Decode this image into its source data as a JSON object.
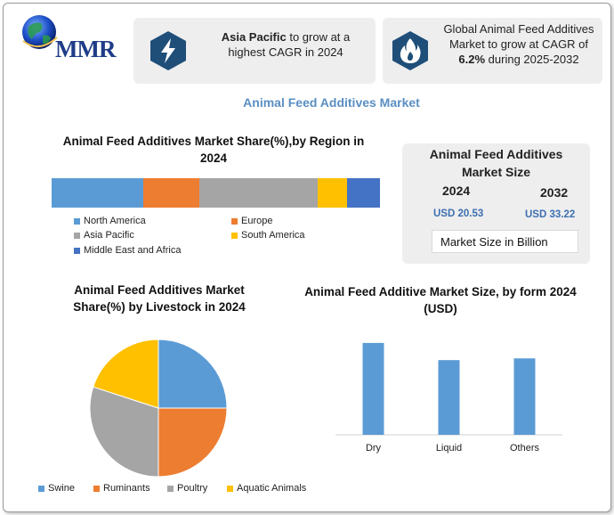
{
  "brand": {
    "logo_text": "MMR"
  },
  "highlights": {
    "region_card": {
      "bold": "Asia Pacific",
      "rest": " to grow at a highest CAGR in 2024",
      "icon": "lightning-icon"
    },
    "cagr_card": {
      "line1": "Global Animal Feed Additives Market to grow at CAGR of",
      "bold": "6.2%",
      "line2": " during 2025-2032",
      "icon": "flame-icon"
    }
  },
  "main_title": "Animal Feed Additives Market",
  "region_section": {
    "title": "Animal Feed Additives Market Share(%),by Region in 2024"
  },
  "market_size": {
    "title": "Animal Feed Additives Market Size",
    "year_a": "2024",
    "value_a": "USD 20.53",
    "year_b": "2032",
    "value_b": "USD 33.22",
    "unit_label": "Market Size in Billion"
  },
  "livestock_section": {
    "title": "Animal Feed Additives Market Share(%) by Livestock in 2024"
  },
  "form_section": {
    "title": "Animal Feed Additive Market Size, by form 2024  (USD)"
  },
  "chart_data": [
    {
      "type": "bar",
      "orientation": "horizontal-stacked",
      "title": "Animal Feed Additives Market Share(%),by Region in 2024",
      "categories": [
        "North America",
        "Europe",
        "Asia Pacific",
        "South America",
        "Middle East and Africa"
      ],
      "values": [
        28,
        17,
        36,
        9,
        10
      ],
      "colors": [
        "#5b9bd5",
        "#ed7d31",
        "#a5a5a5",
        "#ffc000",
        "#4472c4"
      ],
      "legend": "bottom"
    },
    {
      "type": "pie",
      "title": "Animal Feed Additives Market Share(%) by Livestock in 2024",
      "categories": [
        "Swine",
        "Ruminants",
        "Poultry",
        "Aquatic Animals"
      ],
      "values": [
        25,
        25,
        30,
        20
      ],
      "colors": [
        "#5b9bd5",
        "#ed7d31",
        "#a5a5a5",
        "#ffc000"
      ],
      "legend": "bottom"
    },
    {
      "type": "bar",
      "title": "Animal Feed Additive Market Size, by form 2024  (USD)",
      "categories": [
        "Dry",
        "Liquid",
        "Others"
      ],
      "values": [
        10.7,
        8.7,
        8.9
      ],
      "ylim": [
        0,
        11
      ],
      "color": "#5b9bd5",
      "grid": false
    }
  ]
}
